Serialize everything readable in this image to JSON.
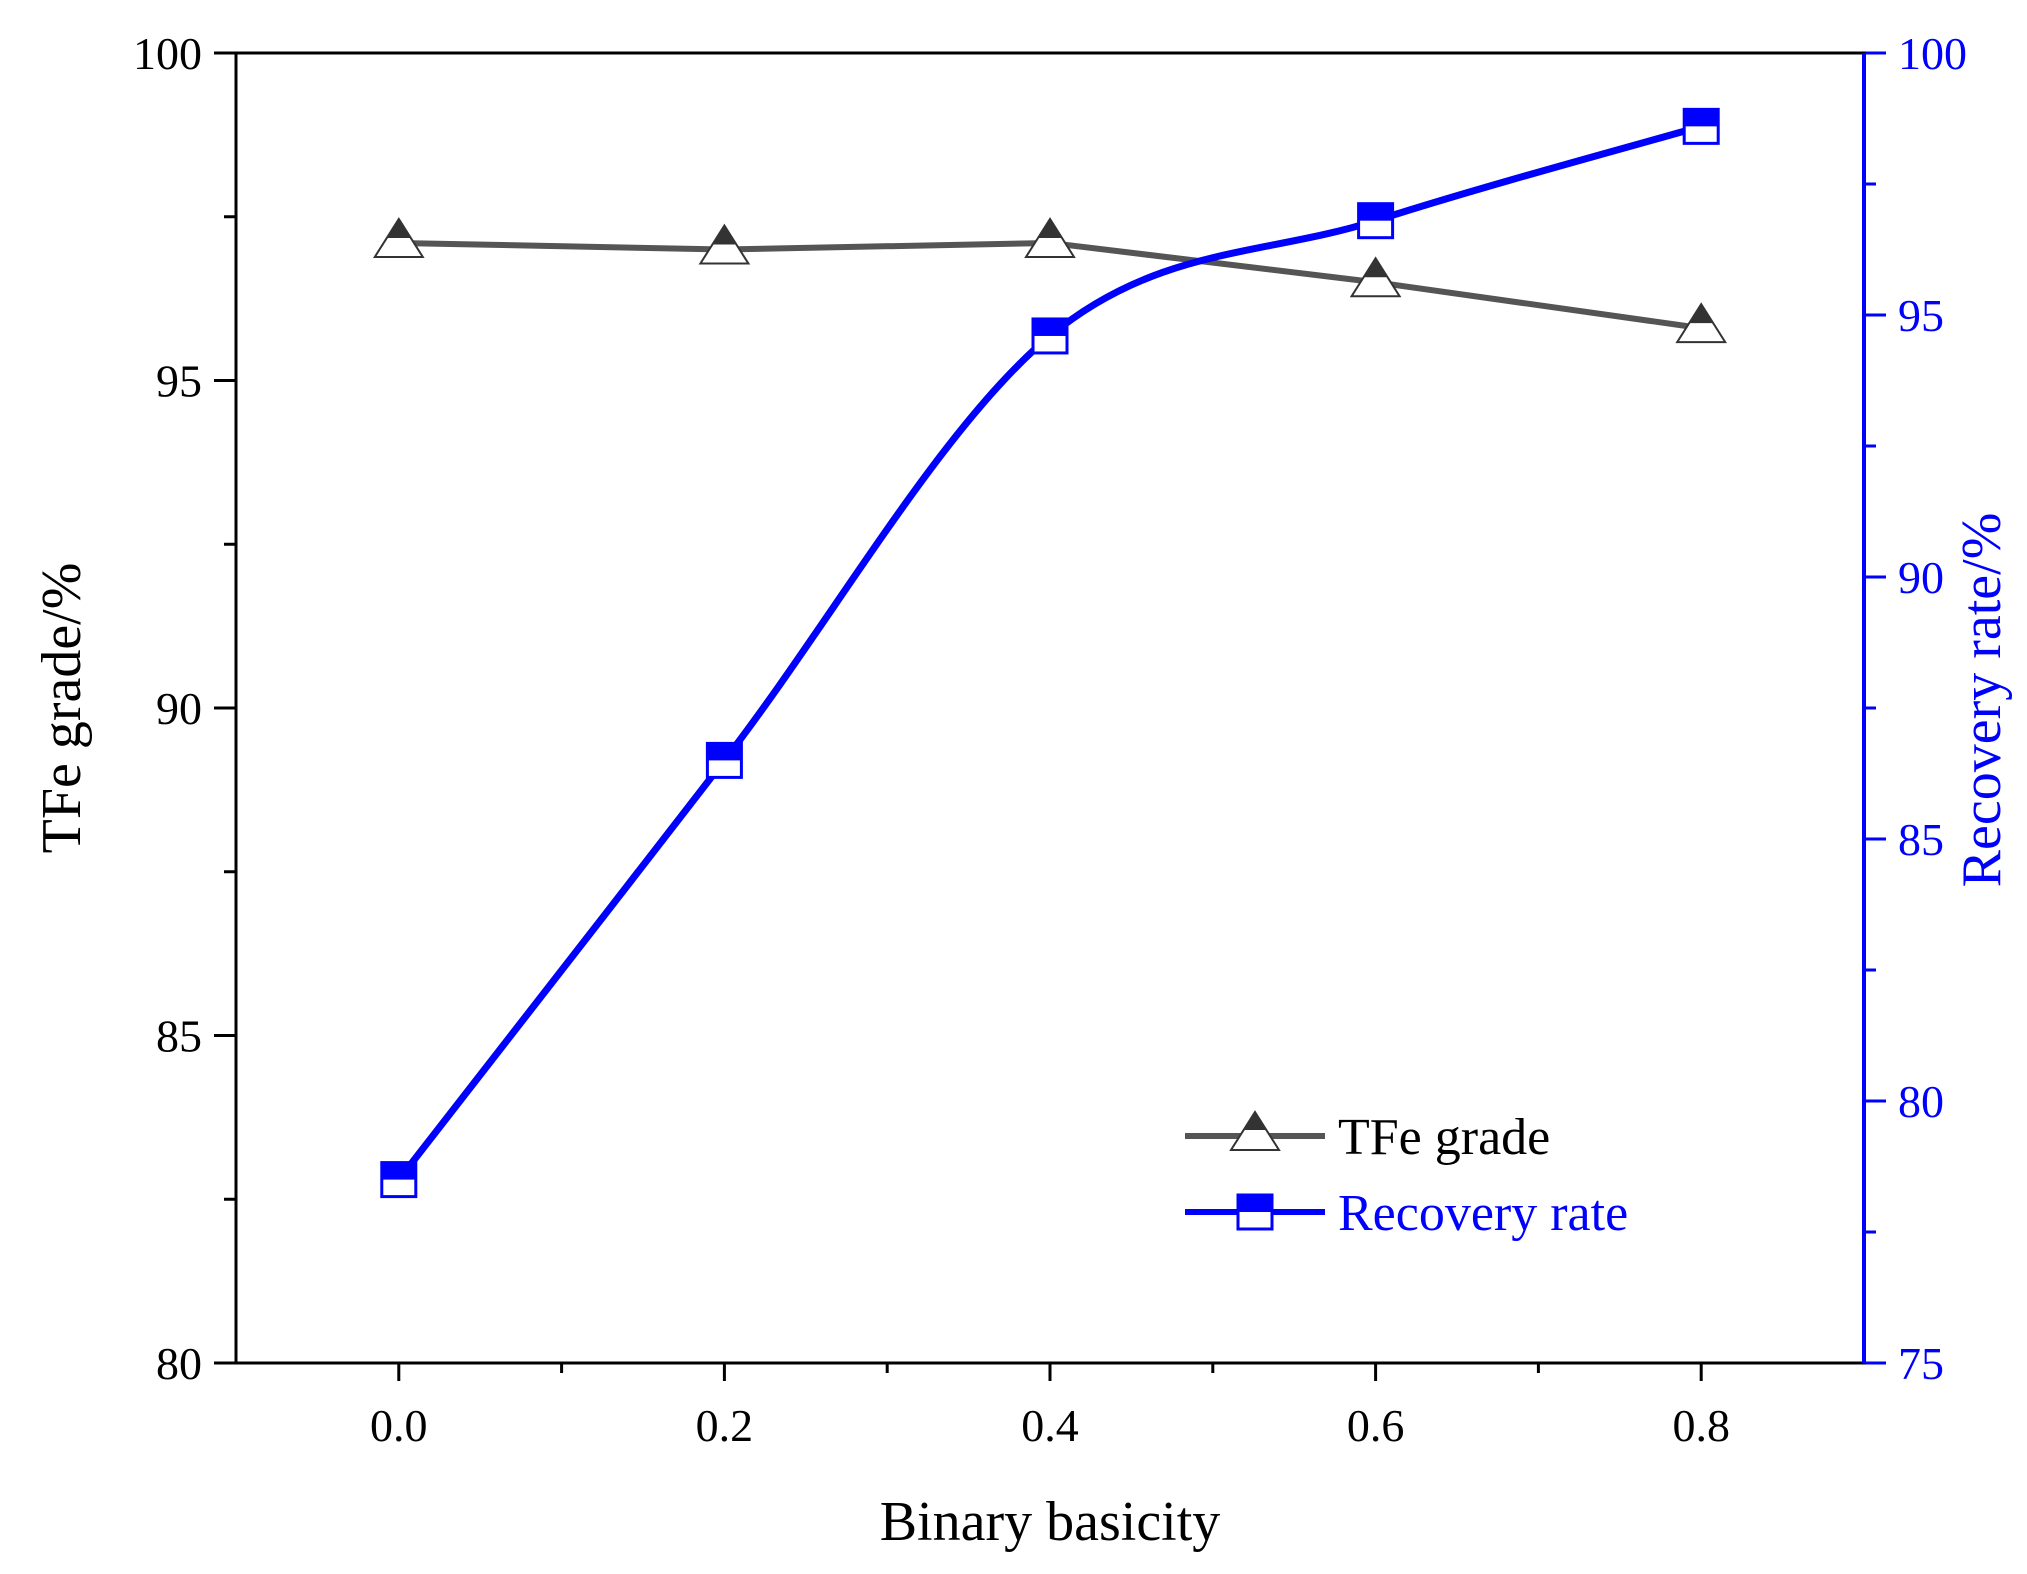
{
  "chart_data": {
    "type": "line",
    "xlabel": "Binary basicity",
    "ylabel_left": "TFe grade/%",
    "ylabel_right": "Recovery rate/%",
    "xlim": [
      -0.1,
      0.9
    ],
    "x_ticks": [
      0.0,
      0.2,
      0.4,
      0.6,
      0.8
    ],
    "x_tick_labels": [
      "0.0",
      "0.2",
      "0.4",
      "0.6",
      "0.8"
    ],
    "ylim_left": [
      80,
      100
    ],
    "y_ticks_left": [
      80,
      85,
      90,
      95,
      100
    ],
    "ylim_right": [
      75,
      100
    ],
    "y_ticks_right": [
      75,
      80,
      85,
      90,
      95,
      100
    ],
    "grid": false,
    "legend_position": "bottom-right",
    "colors": {
      "left_axis": "#000000",
      "right_axis": "#0000ff",
      "tfe_series": "#555555",
      "recovery_series": "#0000ff"
    },
    "series": [
      {
        "name": "TFe grade",
        "axis": "left",
        "marker": "triangle",
        "x": [
          0.0,
          0.2,
          0.4,
          0.6,
          0.8
        ],
        "values": [
          97.1,
          97.0,
          97.1,
          96.5,
          95.8
        ]
      },
      {
        "name": "Recovery rate",
        "axis": "right",
        "marker": "half-filled-square",
        "x": [
          0.0,
          0.2,
          0.4,
          0.6,
          0.8
        ],
        "values": [
          78.5,
          86.5,
          94.6,
          96.8,
          98.6
        ]
      }
    ]
  }
}
